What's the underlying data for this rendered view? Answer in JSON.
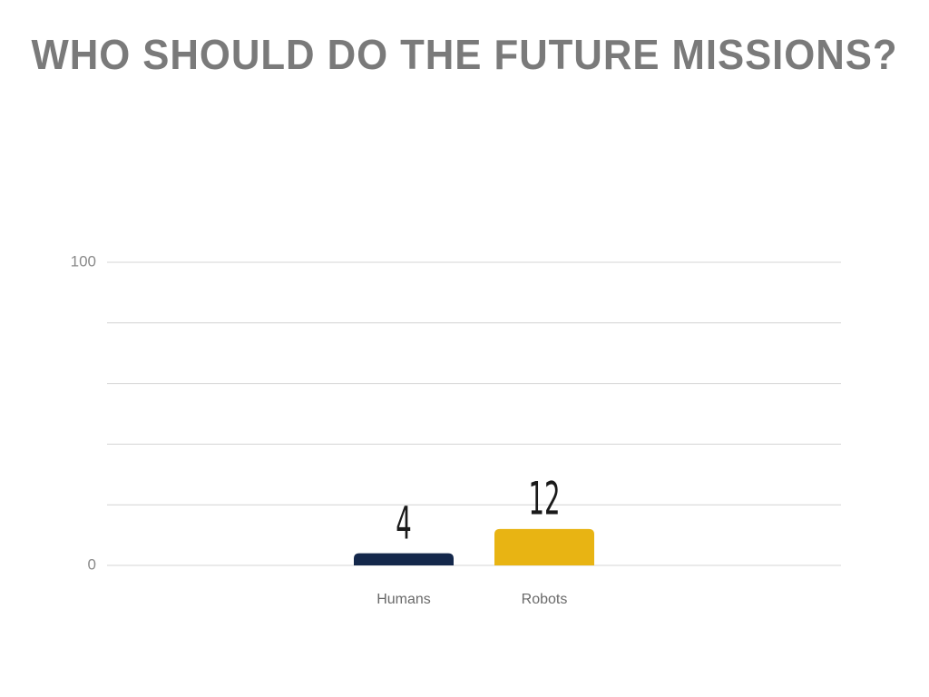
{
  "chart_data": {
    "type": "bar",
    "title": "WHO SHOULD DO THE FUTURE MISSIONS?",
    "categories": [
      "Humans",
      "Robots"
    ],
    "values": [
      4,
      12
    ],
    "colors": [
      "#14284b",
      "#e8b413"
    ],
    "ylim": [
      0,
      100
    ],
    "yticks": [
      0,
      100
    ],
    "minor_yticks": [
      20,
      40,
      60,
      80
    ],
    "grid": true
  }
}
